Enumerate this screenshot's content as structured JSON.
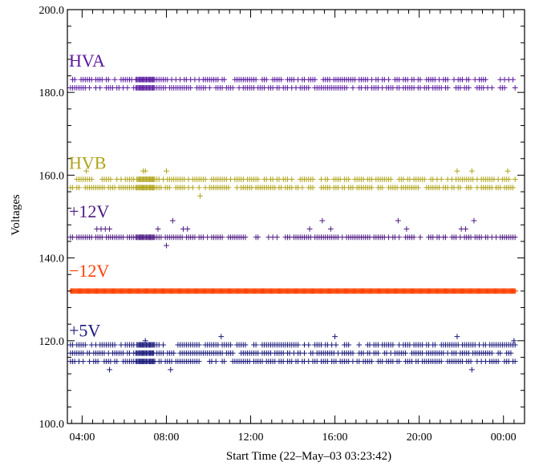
{
  "chart_data": {
    "type": "scatter",
    "title": "",
    "xlabel": "Start Time (22–May–03 03:23:42)",
    "ylabel": "Voltages",
    "xlim": [
      3.3,
      25.0
    ],
    "ylim": [
      100.0,
      200.0
    ],
    "grid": false,
    "marker": "+",
    "yticks": [
      {
        "value": 100.0,
        "label": "100.0"
      },
      {
        "value": 120.0,
        "label": "120.0"
      },
      {
        "value": 140.0,
        "label": "140.0"
      },
      {
        "value": 160.0,
        "label": "160.0"
      },
      {
        "value": 180.0,
        "label": "180.0"
      },
      {
        "value": 200.0,
        "label": "200.0"
      }
    ],
    "xticks": [
      {
        "value": 4,
        "label": "04:00"
      },
      {
        "value": 8,
        "label": "08:00"
      },
      {
        "value": 12,
        "label": "12:00"
      },
      {
        "value": 16,
        "label": "16:00"
      },
      {
        "value": 20,
        "label": "20:00"
      },
      {
        "value": 24,
        "label": "00:00"
      }
    ],
    "series": [
      {
        "name": "HVA",
        "label": "HVA",
        "color": "#5a1aa0",
        "label_y": 186.2,
        "levels": [
          181.1,
          183.1
        ],
        "jitter": [],
        "step": 0.1
      },
      {
        "name": "HVB",
        "label": "HVB",
        "color": "#b0a41a",
        "label_y": 161.5,
        "levels": [
          157.0,
          159.0
        ],
        "jitter": [
          [
            4.2,
            161.0
          ],
          [
            6.9,
            161.0
          ],
          [
            7.0,
            161.0
          ],
          [
            8.0,
            161.0
          ],
          [
            9.6,
            155.0
          ],
          [
            21.8,
            161.0
          ],
          [
            22.5,
            161.0
          ],
          [
            24.2,
            161.0
          ]
        ],
        "step": 0.1
      },
      {
        "name": "+12V",
        "label": "+12V",
        "color": "#4e1a82",
        "label_y": 149.8,
        "levels": [
          145.0
        ],
        "jitter": [
          [
            4.7,
            147.0
          ],
          [
            4.9,
            147.0
          ],
          [
            5.1,
            147.0
          ],
          [
            5.3,
            147.0
          ],
          [
            8.3,
            149.0
          ],
          [
            8.8,
            147.0
          ],
          [
            7.6,
            147.0
          ],
          [
            8.0,
            143.0
          ],
          [
            9.0,
            147.0
          ],
          [
            14.8,
            147.0
          ],
          [
            15.4,
            149.0
          ],
          [
            15.8,
            147.0
          ],
          [
            19.0,
            149.0
          ],
          [
            19.4,
            147.0
          ],
          [
            22.0,
            147.0
          ],
          [
            22.2,
            147.0
          ],
          [
            22.6,
            149.0
          ]
        ],
        "step": 0.1
      },
      {
        "name": "−12V",
        "label": "−12V",
        "color": "#ff4000",
        "label_y": 135.5,
        "levels": [
          132.0
        ],
        "jitter": [],
        "step": 0.04
      },
      {
        "name": "+5V",
        "label": "+5V",
        "color": "#1a1a7a",
        "label_y": 121.0,
        "levels": [
          115.0,
          117.0,
          119.0
        ],
        "jitter": [
          [
            5.3,
            113.0
          ],
          [
            7.0,
            120.0
          ],
          [
            8.2,
            113.0
          ],
          [
            10.6,
            121.0
          ],
          [
            16.0,
            121.0
          ],
          [
            21.8,
            121.0
          ],
          [
            22.5,
            113.0
          ],
          [
            24.5,
            120.0
          ]
        ],
        "step": 0.1
      }
    ]
  }
}
